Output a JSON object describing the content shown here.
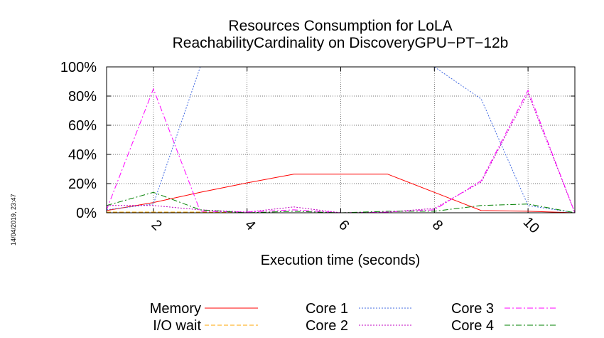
{
  "chart_data": {
    "type": "line",
    "title": "Resources Consumption for LoLA",
    "subtitle": "ReachabilityCardinality on DiscoveryGPU−PT−12b",
    "xlabel": "Execution time (seconds)",
    "ylabel": "",
    "xlim": [
      1,
      11
    ],
    "ylim": [
      0,
      100
    ],
    "grid": true,
    "legend_position": "bottom",
    "x_ticks": [
      2,
      4,
      6,
      8,
      10
    ],
    "y_ticks": [
      0,
      20,
      40,
      60,
      80,
      100
    ],
    "y_tick_labels": [
      "0%",
      "20%",
      "40%",
      "60%",
      "80%",
      "100%"
    ],
    "x": [
      1,
      2,
      3,
      4,
      5,
      6,
      7,
      8,
      9,
      10,
      11
    ],
    "series": [
      {
        "name": "Memory",
        "color": "#ff0000",
        "dash": "solid",
        "values": [
          1.5,
          7,
          14,
          20.5,
          26.5,
          26.5,
          26.5,
          14,
          1.5,
          1,
          0
        ]
      },
      {
        "name": "I/O wait",
        "color": "#ffa500",
        "dash": "dashed",
        "values": [
          0.5,
          0.5,
          0.5,
          0,
          0,
          0,
          0,
          0,
          0,
          0,
          0
        ]
      },
      {
        "name": "Core 1",
        "color": "#4169e1",
        "dash": "dotted",
        "values": [
          2,
          6,
          100,
          100,
          100,
          100,
          100,
          100,
          78,
          5,
          0
        ]
      },
      {
        "name": "Core 2",
        "color": "#c000c0",
        "dash": "dotted",
        "values": [
          5,
          5,
          2,
          0.5,
          4,
          0,
          0.5,
          3,
          21,
          82,
          0
        ]
      },
      {
        "name": "Core 3",
        "color": "#ff00ff",
        "dash": "dashdot",
        "values": [
          2,
          85,
          1,
          0.5,
          2,
          0,
          0.5,
          2,
          22,
          84,
          0
        ]
      },
      {
        "name": "Core 4",
        "color": "#008000",
        "dash": "dashdot",
        "values": [
          5,
          14,
          2,
          0,
          1,
          0,
          1,
          1,
          5,
          6,
          0
        ]
      }
    ]
  },
  "timestamp": "14/04/2019, 23:47"
}
